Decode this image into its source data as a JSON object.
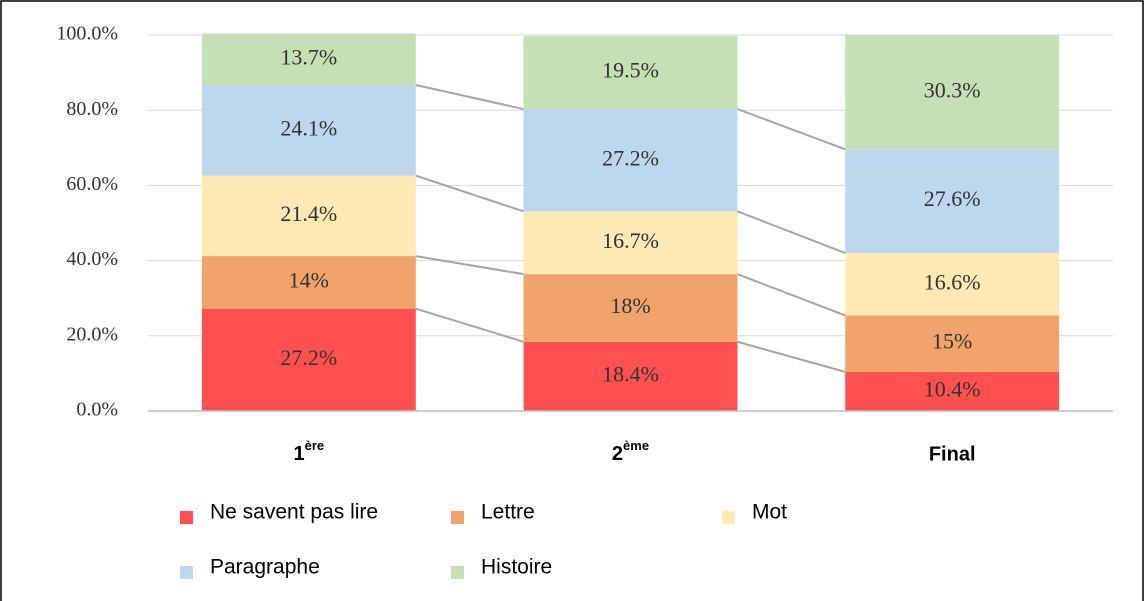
{
  "chart_data": {
    "type": "stacked_bar",
    "categories": [
      "1ère",
      "2ème",
      "Final"
    ],
    "series": [
      {
        "name": "Ne savent pas lire",
        "color": "#ff5050",
        "values": [
          27.2,
          18.4,
          10.4
        ],
        "value_labels": [
          "27.2%",
          "18.4%",
          "10.4%"
        ]
      },
      {
        "name": "Lettre",
        "color": "#f0a46c",
        "values": [
          14,
          18,
          15
        ],
        "value_labels": [
          "14%",
          "18%",
          "15%"
        ]
      },
      {
        "name": "Mot",
        "color": "#fde9b3",
        "values": [
          21.4,
          16.7,
          16.6
        ],
        "value_labels": [
          "21.4%",
          "16.7%",
          "16.6%"
        ]
      },
      {
        "name": "Paragraphe",
        "color": "#bdd7ee",
        "values": [
          24.1,
          27.2,
          27.6
        ],
        "value_labels": [
          "24.1%",
          "27.2%",
          "27.6%"
        ]
      },
      {
        "name": "Histoire",
        "color": "#c5e0b4",
        "values": [
          13.7,
          19.5,
          30.3
        ],
        "value_labels": [
          "13.7%",
          "19.5%",
          "30.3%"
        ]
      }
    ],
    "ylim": [
      0,
      100
    ],
    "yticks": [
      {
        "value": 0,
        "label": "0.0%"
      },
      {
        "value": 20,
        "label": "20.0%"
      },
      {
        "value": 40,
        "label": "40.0%"
      },
      {
        "value": 60,
        "label": "60.0%"
      },
      {
        "value": 80,
        "label": "80.0%"
      },
      {
        "value": 100,
        "label": "100.0%"
      }
    ],
    "grid": true,
    "legend": "bottom"
  }
}
